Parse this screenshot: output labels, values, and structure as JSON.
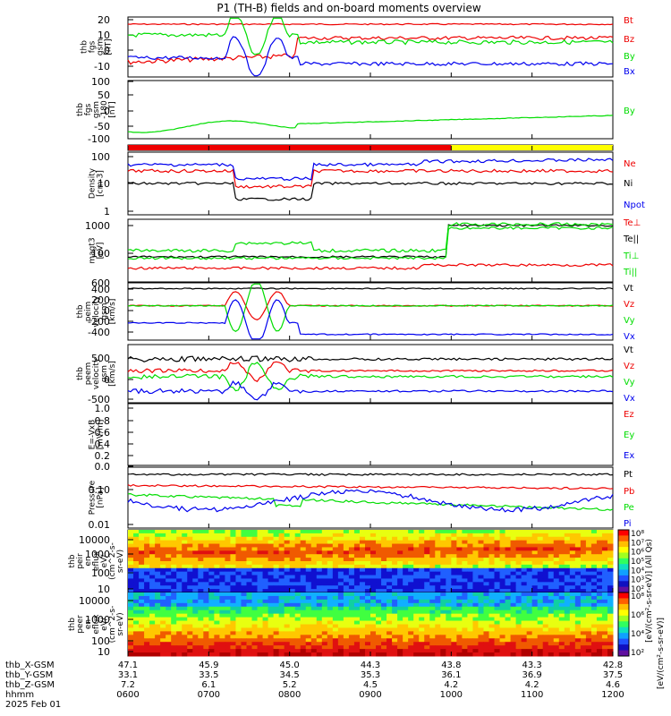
{
  "title": "P1 (TH-B) fields and on-board moments overview",
  "colors": {
    "black": "#000000",
    "red": "#ee0000",
    "green": "#00dd00",
    "blue": "#0000ee",
    "yellow": "#ffff00"
  },
  "chart_data": [
    {
      "type": "line",
      "ylabel": [
        "thb",
        "fgs",
        "gsm",
        "[nT]"
      ],
      "yticks": [
        "20",
        "10",
        "0",
        "-10"
      ],
      "ylim": [
        -16,
        22
      ],
      "series": [
        {
          "name": "Bt",
          "color": "red"
        },
        {
          "name": "Bz",
          "color": "red"
        },
        {
          "name": "By",
          "color": "green"
        },
        {
          "name": "Bx",
          "color": "blue"
        }
      ]
    },
    {
      "type": "line",
      "ylabel": [
        "thb",
        "fgs",
        "gsm",
        "-180",
        "[nT]"
      ],
      "yticks": [
        "100",
        "50",
        "0",
        "-50",
        "-100"
      ],
      "ylim": [
        -130,
        100
      ],
      "series": [
        {
          "name": "By",
          "color": "green"
        }
      ]
    },
    {
      "type": "bar",
      "ylabel": [],
      "yticks": [],
      "flag_segments": [
        {
          "from": "0600",
          "to": "1000",
          "color": "red"
        },
        {
          "from": "1000",
          "to": "1200",
          "color": "yellow"
        }
      ]
    },
    {
      "type": "line",
      "ylabel": [
        "Density",
        "[cm-3]"
      ],
      "yticks": [
        "100",
        "10",
        "1"
      ],
      "scale": "log",
      "series": [
        {
          "name": "Ne",
          "color": "red"
        },
        {
          "name": "Ni",
          "color": "black"
        },
        {
          "name": "Npot",
          "color": "blue"
        }
      ]
    },
    {
      "type": "line",
      "ylabel": [
        "magt3",
        "[eV]"
      ],
      "yticks": [
        "1000",
        "100"
      ],
      "scale": "log",
      "series": [
        {
          "name": "Te⊥",
          "color": "red"
        },
        {
          "name": "Te||",
          "color": "black"
        },
        {
          "name": "Ti⊥",
          "color": "green"
        },
        {
          "name": "Ti||",
          "color": "green"
        }
      ]
    },
    {
      "type": "line",
      "ylabel": [
        "thb",
        "peim",
        "velocity",
        "gsm",
        "[km/s]"
      ],
      "yticks": [
        "600",
        "400",
        "200",
        "0",
        "-200",
        "-400"
      ],
      "ylim": [
        -500,
        600
      ],
      "series": [
        {
          "name": "Vt",
          "color": "black"
        },
        {
          "name": "Vz",
          "color": "red"
        },
        {
          "name": "Vy",
          "color": "green"
        },
        {
          "name": "Vx",
          "color": "blue"
        }
      ]
    },
    {
      "type": "line",
      "ylabel": [
        "thb",
        "peem",
        "velocity",
        "gsm",
        "[km/s]"
      ],
      "yticks": [
        "500",
        "0",
        "-500"
      ],
      "ylim": [
        -650,
        800
      ],
      "series": [
        {
          "name": "Vt",
          "color": "black"
        },
        {
          "name": "Vz",
          "color": "red"
        },
        {
          "name": "Vy",
          "color": "green"
        },
        {
          "name": "Vx",
          "color": "blue"
        }
      ]
    },
    {
      "type": "line",
      "ylabel": [
        "E=-VxB",
        "[mV/m]"
      ],
      "yticks": [
        "1.0",
        "0.8",
        "0.6",
        "0.4",
        "0.2",
        "0.0",
        "-0.2"
      ],
      "ylim": [
        -0.2,
        1.0
      ],
      "series": [
        {
          "name": "Ez",
          "color": "red"
        },
        {
          "name": "Ey",
          "color": "green"
        },
        {
          "name": "Ex",
          "color": "blue"
        }
      ]
    },
    {
      "type": "line",
      "ylabel": [
        "Pressure",
        "[nPa]"
      ],
      "yticks": [
        "0.10",
        "0.01"
      ],
      "scale": "log",
      "series": [
        {
          "name": "Pt",
          "color": "black"
        },
        {
          "name": "Pb",
          "color": "red"
        },
        {
          "name": "Pe",
          "color": "green"
        },
        {
          "name": "Pi",
          "color": "blue"
        }
      ]
    },
    {
      "type": "heatmap",
      "ylabel": [
        "thb",
        "peir",
        "en",
        "eflux",
        "eV/",
        "(cm^2-s-",
        "sr-eV)"
      ],
      "yticks": [
        "10000",
        "1000",
        "100",
        "10"
      ],
      "scale": "log"
    },
    {
      "type": "heatmap",
      "ylabel": [
        "thb",
        "peer",
        "en",
        "eflux",
        "eV/",
        "(cm^2-s-",
        "sr-eV)"
      ],
      "yticks": [
        "10000",
        "1000",
        "100",
        "10"
      ],
      "scale": "log"
    }
  ],
  "colorbar": {
    "ticks_upper": [
      "10⁸",
      "10⁷",
      "10⁶",
      "10⁵",
      "10⁴",
      "10³",
      "10²"
    ],
    "ticks_lower": [
      "10⁸",
      "10⁶",
      "10⁴",
      "10²"
    ],
    "label": "[eV/(cm²-s-sr-eV)] (All Qs)",
    "side_label": "[eV/(cm²-s-sr-eV)]"
  },
  "x_axis": {
    "row_labels": [
      "thb_X-GSM",
      "thb_Y-GSM",
      "thb_Z-GSM",
      "hhmm",
      "2025 Feb 01"
    ],
    "columns": [
      [
        "47.1",
        "33.1",
        "7.2",
        "0600"
      ],
      [
        "45.9",
        "33.5",
        "6.1",
        "0700"
      ],
      [
        "45.0",
        "34.5",
        "5.2",
        "0800"
      ],
      [
        "44.3",
        "35.3",
        "4.5",
        "0900"
      ],
      [
        "43.8",
        "36.1",
        "4.2",
        "1000"
      ],
      [
        "43.3",
        "36.9",
        "4.2",
        "1100"
      ],
      [
        "42.8",
        "37.5",
        "4.6",
        "1200"
      ]
    ]
  }
}
